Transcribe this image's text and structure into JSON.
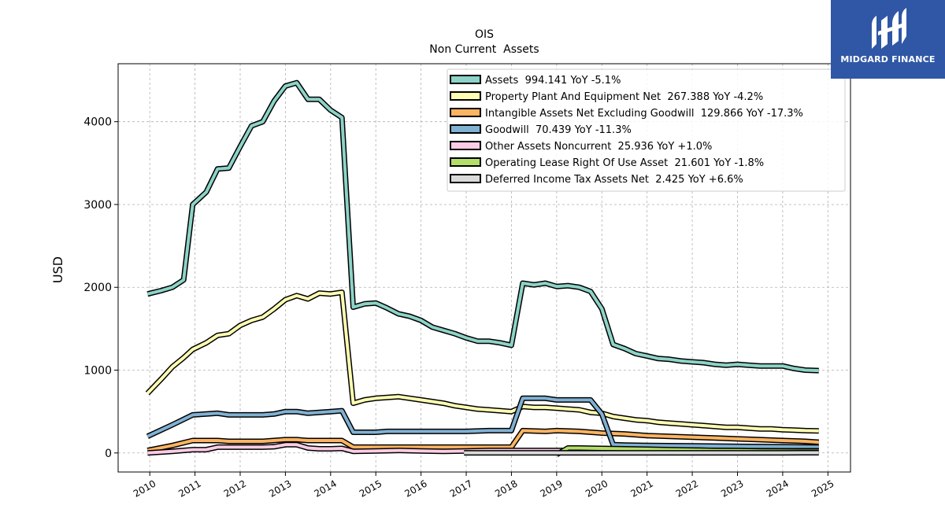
{
  "brand": {
    "name": "MIDGARD FINANCE",
    "color": "#2f57a6"
  },
  "chart_data": {
    "type": "line",
    "title": "OIS",
    "subtitle": "Non Current  Assets",
    "ylabel": "USD",
    "xlabel": "",
    "xlim": [
      2009.3,
      2025.5
    ],
    "ylim": [
      -230,
      4700
    ],
    "x_ticks": [
      2010,
      2011,
      2012,
      2013,
      2014,
      2015,
      2016,
      2017,
      2018,
      2019,
      2020,
      2021,
      2022,
      2023,
      2024,
      2025
    ],
    "y_ticks": [
      0,
      1000,
      2000,
      3000,
      4000
    ],
    "grid": true,
    "legend_position": "top-right",
    "series": [
      {
        "name": "Assets",
        "legend": "Assets  994.141 YoY -5.1%",
        "color": "#8dd3c7",
        "points": [
          [
            2009.95,
            1920
          ],
          [
            2010.25,
            1960
          ],
          [
            2010.5,
            2000
          ],
          [
            2010.75,
            2090
          ],
          [
            2010.95,
            3000
          ],
          [
            2011.25,
            3150
          ],
          [
            2011.5,
            3430
          ],
          [
            2011.75,
            3440
          ],
          [
            2012.0,
            3700
          ],
          [
            2012.25,
            3950
          ],
          [
            2012.5,
            4000
          ],
          [
            2012.75,
            4250
          ],
          [
            2013.0,
            4430
          ],
          [
            2013.25,
            4470
          ],
          [
            2013.5,
            4270
          ],
          [
            2013.75,
            4270
          ],
          [
            2014.0,
            4140
          ],
          [
            2014.25,
            4050
          ],
          [
            2014.5,
            1760
          ],
          [
            2014.75,
            1800
          ],
          [
            2015.0,
            1810
          ],
          [
            2015.25,
            1750
          ],
          [
            2015.5,
            1680
          ],
          [
            2015.75,
            1650
          ],
          [
            2016.0,
            1600
          ],
          [
            2016.25,
            1520
          ],
          [
            2016.5,
            1480
          ],
          [
            2016.75,
            1440
          ],
          [
            2017.0,
            1390
          ],
          [
            2017.25,
            1350
          ],
          [
            2017.5,
            1350
          ],
          [
            2017.75,
            1330
          ],
          [
            2018.0,
            1300
          ],
          [
            2018.25,
            2050
          ],
          [
            2018.5,
            2030
          ],
          [
            2018.75,
            2050
          ],
          [
            2019.0,
            2010
          ],
          [
            2019.25,
            2020
          ],
          [
            2019.5,
            2000
          ],
          [
            2019.75,
            1950
          ],
          [
            2020.0,
            1740
          ],
          [
            2020.25,
            1310
          ],
          [
            2020.5,
            1260
          ],
          [
            2020.75,
            1200
          ],
          [
            2021.0,
            1170
          ],
          [
            2021.25,
            1140
          ],
          [
            2021.5,
            1130
          ],
          [
            2021.75,
            1110
          ],
          [
            2022.0,
            1100
          ],
          [
            2022.25,
            1090
          ],
          [
            2022.5,
            1070
          ],
          [
            2022.75,
            1060
          ],
          [
            2023.0,
            1070
          ],
          [
            2023.25,
            1060
          ],
          [
            2023.5,
            1050
          ],
          [
            2023.75,
            1050
          ],
          [
            2024.0,
            1050
          ],
          [
            2024.25,
            1020
          ],
          [
            2024.5,
            1000
          ],
          [
            2024.8,
            994
          ]
        ]
      },
      {
        "name": "Property Plant And Equipment Net",
        "legend": "Property Plant And Equipment Net  267.388 YoY -4.2%",
        "color": "#ffffb3",
        "points": [
          [
            2009.95,
            720
          ],
          [
            2010.25,
            890
          ],
          [
            2010.5,
            1040
          ],
          [
            2010.75,
            1150
          ],
          [
            2010.95,
            1250
          ],
          [
            2011.25,
            1330
          ],
          [
            2011.5,
            1420
          ],
          [
            2011.75,
            1440
          ],
          [
            2012.0,
            1540
          ],
          [
            2012.25,
            1600
          ],
          [
            2012.5,
            1640
          ],
          [
            2012.75,
            1740
          ],
          [
            2013.0,
            1850
          ],
          [
            2013.25,
            1900
          ],
          [
            2013.5,
            1860
          ],
          [
            2013.75,
            1930
          ],
          [
            2014.0,
            1920
          ],
          [
            2014.25,
            1940
          ],
          [
            2014.5,
            600
          ],
          [
            2014.75,
            640
          ],
          [
            2015.0,
            660
          ],
          [
            2015.25,
            670
          ],
          [
            2015.5,
            680
          ],
          [
            2015.75,
            660
          ],
          [
            2016.0,
            640
          ],
          [
            2016.25,
            620
          ],
          [
            2016.5,
            600
          ],
          [
            2016.75,
            570
          ],
          [
            2017.0,
            550
          ],
          [
            2017.25,
            530
          ],
          [
            2017.5,
            520
          ],
          [
            2017.75,
            510
          ],
          [
            2018.0,
            500
          ],
          [
            2018.25,
            560
          ],
          [
            2018.5,
            550
          ],
          [
            2018.75,
            550
          ],
          [
            2019.0,
            540
          ],
          [
            2019.25,
            530
          ],
          [
            2019.5,
            520
          ],
          [
            2019.75,
            490
          ],
          [
            2020.0,
            480
          ],
          [
            2020.25,
            440
          ],
          [
            2020.5,
            420
          ],
          [
            2020.75,
            400
          ],
          [
            2021.0,
            390
          ],
          [
            2021.25,
            370
          ],
          [
            2021.5,
            360
          ],
          [
            2021.75,
            350
          ],
          [
            2022.0,
            340
          ],
          [
            2022.25,
            330
          ],
          [
            2022.5,
            320
          ],
          [
            2022.75,
            310
          ],
          [
            2023.0,
            310
          ],
          [
            2023.25,
            300
          ],
          [
            2023.5,
            290
          ],
          [
            2023.75,
            290
          ],
          [
            2024.0,
            280
          ],
          [
            2024.25,
            275
          ],
          [
            2024.5,
            270
          ],
          [
            2024.8,
            267
          ]
        ]
      },
      {
        "name": "Intangible Assets Net Excluding Goodwill",
        "legend": "Intangible Assets Net Excluding Goodwill  129.866 YoY -17.3%",
        "color": "#fdb462",
        "points": [
          [
            2009.95,
            30
          ],
          [
            2010.5,
            90
          ],
          [
            2010.95,
            150
          ],
          [
            2011.5,
            150
          ],
          [
            2011.75,
            140
          ],
          [
            2012.0,
            140
          ],
          [
            2012.5,
            140
          ],
          [
            2013.0,
            160
          ],
          [
            2013.25,
            160
          ],
          [
            2013.5,
            150
          ],
          [
            2014.0,
            150
          ],
          [
            2014.25,
            150
          ],
          [
            2014.5,
            70
          ],
          [
            2015.0,
            70
          ],
          [
            2015.25,
            70
          ],
          [
            2016.0,
            70
          ],
          [
            2017.0,
            70
          ],
          [
            2017.5,
            70
          ],
          [
            2018.0,
            70
          ],
          [
            2018.25,
            270
          ],
          [
            2018.75,
            260
          ],
          [
            2019.0,
            270
          ],
          [
            2019.5,
            260
          ],
          [
            2020.0,
            240
          ],
          [
            2020.5,
            230
          ],
          [
            2021.0,
            210
          ],
          [
            2021.5,
            200
          ],
          [
            2022.0,
            190
          ],
          [
            2022.5,
            180
          ],
          [
            2023.0,
            170
          ],
          [
            2023.5,
            160
          ],
          [
            2024.0,
            150
          ],
          [
            2024.5,
            140
          ],
          [
            2024.8,
            130
          ]
        ]
      },
      {
        "name": "Goodwill",
        "legend": "Goodwill  70.439 YoY -11.3%",
        "color": "#80b1d3",
        "points": [
          [
            2009.95,
            200
          ],
          [
            2010.5,
            340
          ],
          [
            2010.95,
            460
          ],
          [
            2011.25,
            470
          ],
          [
            2011.5,
            480
          ],
          [
            2011.75,
            460
          ],
          [
            2012.0,
            460
          ],
          [
            2012.5,
            460
          ],
          [
            2012.75,
            470
          ],
          [
            2013.0,
            500
          ],
          [
            2013.25,
            500
          ],
          [
            2013.5,
            480
          ],
          [
            2014.0,
            500
          ],
          [
            2014.25,
            510
          ],
          [
            2014.5,
            250
          ],
          [
            2015.0,
            250
          ],
          [
            2015.25,
            260
          ],
          [
            2016.0,
            260
          ],
          [
            2017.0,
            260
          ],
          [
            2017.5,
            270
          ],
          [
            2018.0,
            270
          ],
          [
            2018.25,
            660
          ],
          [
            2018.75,
            660
          ],
          [
            2019.0,
            640
          ],
          [
            2019.75,
            640
          ],
          [
            2020.0,
            470
          ],
          [
            2020.25,
            100
          ],
          [
            2020.5,
            95
          ],
          [
            2021.0,
            90
          ],
          [
            2022.0,
            85
          ],
          [
            2023.0,
            80
          ],
          [
            2024.0,
            75
          ],
          [
            2024.8,
            70
          ]
        ]
      },
      {
        "name": "Other Assets Noncurrent",
        "legend": "Other Assets Noncurrent  25.936 YoY +1.0%",
        "color": "#fccde5",
        "points": [
          [
            2009.95,
            0
          ],
          [
            2010.5,
            20
          ],
          [
            2010.95,
            40
          ],
          [
            2011.25,
            40
          ],
          [
            2011.5,
            70
          ],
          [
            2012.0,
            70
          ],
          [
            2012.5,
            70
          ],
          [
            2012.75,
            75
          ],
          [
            2013.0,
            100
          ],
          [
            2013.25,
            100
          ],
          [
            2013.5,
            60
          ],
          [
            2013.75,
            50
          ],
          [
            2014.0,
            50
          ],
          [
            2014.25,
            55
          ],
          [
            2014.5,
            20
          ],
          [
            2015.0,
            25
          ],
          [
            2015.5,
            30
          ],
          [
            2016.0,
            25
          ],
          [
            2016.5,
            20
          ],
          [
            2017.0,
            25
          ],
          [
            2017.5,
            30
          ],
          [
            2018.0,
            30
          ],
          [
            2018.5,
            30
          ],
          [
            2019.0,
            30
          ],
          [
            2019.5,
            30
          ],
          [
            2020.0,
            30
          ],
          [
            2021.0,
            28
          ],
          [
            2022.0,
            28
          ],
          [
            2023.0,
            27
          ],
          [
            2024.0,
            26
          ],
          [
            2024.8,
            26
          ]
        ]
      },
      {
        "name": "Operating Lease Right Of Use Asset",
        "legend": "Operating Lease Right Of Use Asset  21.601 YoY -1.8%",
        "color": "#b3de69",
        "points": [
          [
            2019.0,
            -20
          ],
          [
            2019.25,
            60
          ],
          [
            2019.5,
            60
          ],
          [
            2020.0,
            55
          ],
          [
            2020.5,
            50
          ],
          [
            2021.0,
            45
          ],
          [
            2021.5,
            40
          ],
          [
            2022.0,
            35
          ],
          [
            2022.5,
            30
          ],
          [
            2023.0,
            28
          ],
          [
            2023.5,
            25
          ],
          [
            2024.0,
            23
          ],
          [
            2024.8,
            22
          ]
        ]
      },
      {
        "name": "Deferred Income Tax Assets Net",
        "legend": "Deferred Income Tax Assets Net  2.425 YoY +6.6%",
        "color": "#d9d9d9",
        "points": [
          [
            2016.95,
            2
          ],
          [
            2018.0,
            2
          ],
          [
            2019.0,
            2
          ],
          [
            2020.0,
            2
          ],
          [
            2021.0,
            2
          ],
          [
            2022.0,
            2
          ],
          [
            2023.0,
            2
          ],
          [
            2024.0,
            2
          ],
          [
            2024.8,
            2.4
          ]
        ]
      }
    ]
  }
}
